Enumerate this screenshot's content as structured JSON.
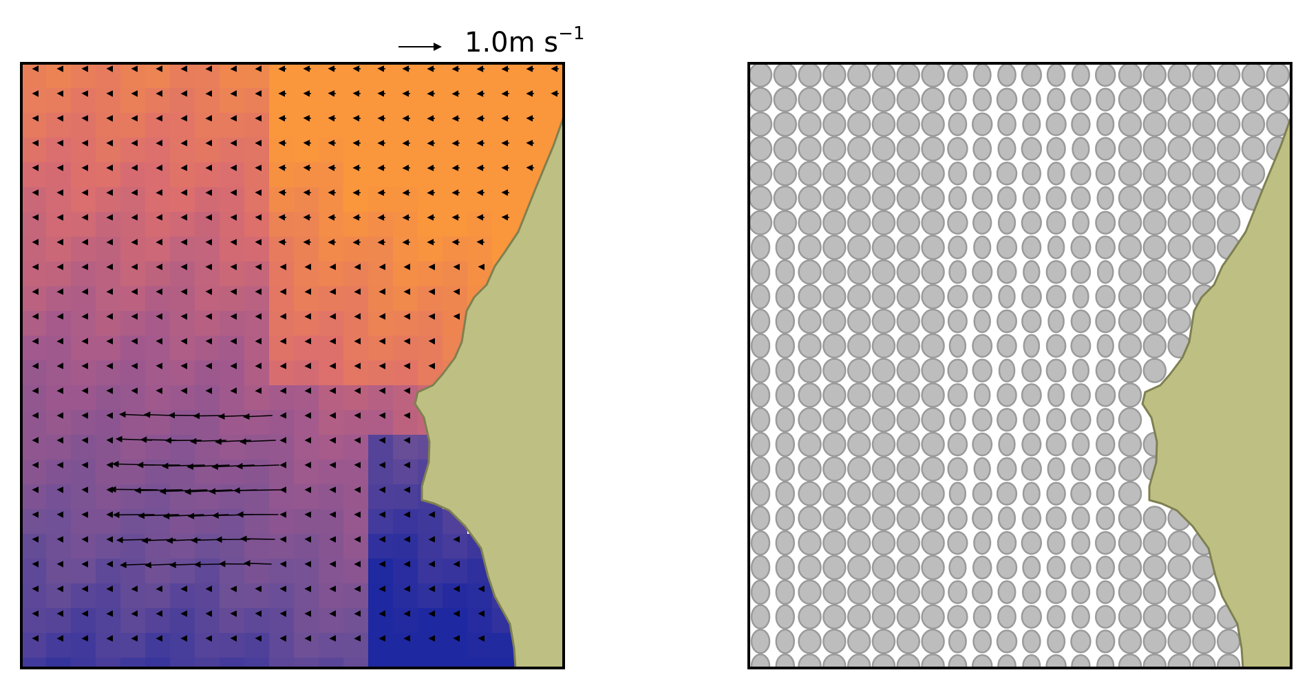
{
  "scale": {
    "value": "1.0",
    "unit": "m s",
    "exponent": "−1"
  },
  "colors": {
    "land": "#bebf82",
    "land_edge": "#7e8050",
    "cell_fill": "#bdbdbd",
    "cell_edge": "#9a9a9a",
    "frame": "#000000",
    "arrow": "#000000"
  },
  "icons": {
    "scale_arrow": "right-arrow-icon"
  }
}
